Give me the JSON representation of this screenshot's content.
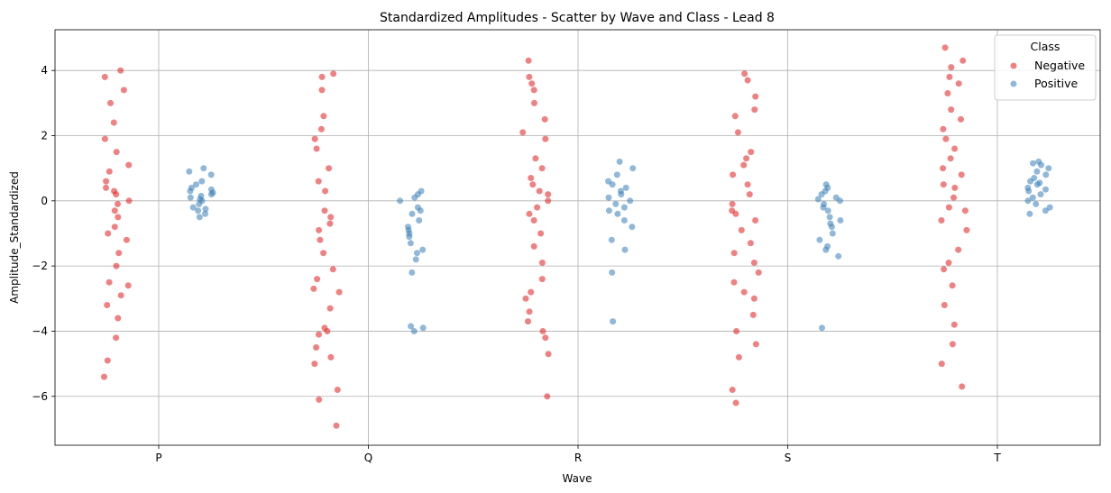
{
  "chart_data": {
    "type": "scatter",
    "title": "Standardized Amplitudes - Scatter by Wave and Class - Lead 8",
    "xlabel": "Wave",
    "ylabel": "Amplitude_Standardized",
    "categories": [
      "P",
      "Q",
      "R",
      "S",
      "T"
    ],
    "ylim": [
      -7.5,
      5.25
    ],
    "yticks": [
      -6,
      -4,
      -2,
      0,
      2,
      4
    ],
    "grid": true,
    "legend": {
      "title": "Class",
      "position": "top-right"
    },
    "series": [
      {
        "name": "Negative",
        "color": "#e41a1c",
        "values": [
          [
            0.2,
            -0.5,
            0.4,
            0.9,
            -0.8,
            1.5,
            1.9,
            -1.2,
            -1.6,
            2.4,
            3.0,
            3.4,
            4.0,
            3.8,
            -2.0,
            -2.5,
            -2.9,
            -3.2,
            -3.6,
            -4.2,
            -4.9,
            -5.4,
            -2.6,
            0.0,
            0.6,
            -0.3,
            1.1,
            -1.0,
            0.3,
            -0.1
          ],
          [
            -0.5,
            -1.2,
            -2.4,
            -2.8,
            -3.9,
            -4.1,
            -4.0,
            2.2,
            1.6,
            3.9,
            3.8,
            3.4,
            -5.0,
            -5.8,
            -6.1,
            -6.9,
            0.3,
            -0.9,
            1.0,
            -1.6,
            -2.1,
            -3.3,
            -4.5,
            0.6,
            -0.3,
            1.9,
            -2.7,
            2.6,
            -4.8,
            -0.7
          ],
          [
            0.0,
            0.7,
            -0.6,
            1.3,
            -1.4,
            2.5,
            3.0,
            3.4,
            3.8,
            4.3,
            -2.4,
            -3.0,
            -3.4,
            -4.0,
            -4.2,
            -4.7,
            -6.0,
            1.9,
            -1.9,
            0.3,
            -0.2,
            2.1,
            -2.8,
            3.6,
            -3.7,
            0.5,
            -1.0,
            1.0,
            -0.4,
            0.2
          ],
          [
            -0.3,
            -0.9,
            0.5,
            1.1,
            -1.6,
            -2.2,
            -2.8,
            3.2,
            3.7,
            3.9,
            2.6,
            -3.5,
            -4.4,
            -4.8,
            -5.8,
            -6.2,
            1.5,
            -1.3,
            0.2,
            -0.6,
            2.1,
            -3.0,
            -4.0,
            0.8,
            -2.5,
            -0.1,
            1.3,
            -1.9,
            2.8,
            -0.4
          ],
          [
            0.4,
            1.0,
            -0.2,
            1.6,
            2.2,
            2.8,
            3.3,
            3.8,
            4.3,
            4.7,
            1.9,
            -0.6,
            -1.5,
            -2.1,
            -2.6,
            -3.2,
            -3.8,
            -4.4,
            -5.0,
            -5.7,
            0.1,
            0.8,
            1.3,
            -0.9,
            2.5,
            3.6,
            -1.9,
            4.1,
            0.5,
            -0.3
          ]
        ]
      },
      {
        "name": "Positive",
        "color": "#377eb8",
        "values": [
          [
            0.1,
            0.3,
            -0.2,
            0.5,
            0.9,
            1.0,
            -0.5,
            -0.3,
            0.0,
            0.2,
            0.6,
            -0.1,
            0.4,
            0.8,
            -0.4,
            0.15,
            0.35,
            -0.25,
            0.05,
            0.25
          ],
          [
            -0.3,
            -0.9,
            -1.3,
            -1.8,
            0.2,
            0.3,
            -2.2,
            -3.9,
            -4.0,
            -0.6,
            -1.1,
            0.0,
            -1.5,
            -0.4,
            0.1,
            -0.8,
            -1.6,
            -0.2,
            -3.85,
            -1.0
          ],
          [
            0.0,
            0.4,
            -0.3,
            0.8,
            1.2,
            1.0,
            -0.6,
            -1.2,
            -1.5,
            -2.2,
            -3.7,
            0.2,
            -0.1,
            0.6,
            -0.8,
            0.3,
            0.1,
            -0.4,
            0.5,
            -0.2
          ],
          [
            -0.2,
            0.1,
            0.3,
            -0.6,
            -1.0,
            -1.4,
            -1.7,
            -3.9,
            0.5,
            -0.3,
            0.0,
            -0.8,
            -1.2,
            0.2,
            -0.5,
            -0.1,
            0.4,
            -0.7,
            -1.5,
            0.05
          ],
          [
            0.3,
            0.8,
            1.2,
            1.1,
            -0.2,
            -0.4,
            0.5,
            0.1,
            0.9,
            0.0,
            0.6,
            -0.3,
            1.0,
            0.4,
            0.2,
            0.7,
            -0.1,
            1.15,
            0.35,
            0.55
          ]
        ]
      }
    ]
  }
}
